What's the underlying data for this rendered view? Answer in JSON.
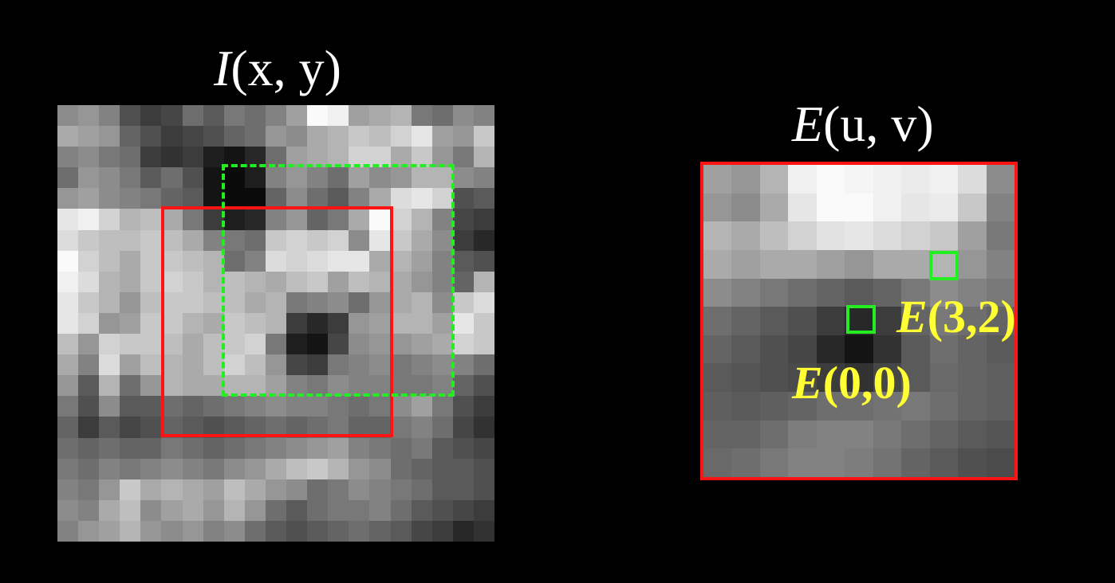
{
  "titles": {
    "image": {
      "name": "I",
      "args": "(x, y)"
    },
    "error": {
      "name": "E",
      "args": "(u, v)"
    }
  },
  "labels": {
    "e00": {
      "name": "E",
      "args": "(0,0)"
    },
    "e32": {
      "name": "E",
      "args": "(3,2)"
    }
  },
  "colors": {
    "background": "#000000",
    "window": "#ff1414",
    "shifted_window": "#22ee22",
    "marker": "#22ee22",
    "label_text": "#ffff33",
    "title_text": "#ffffff"
  },
  "image_patch": {
    "rows": 21,
    "cols": 21,
    "pixels": [
      [
        140,
        150,
        130,
        80,
        60,
        70,
        110,
        90,
        120,
        110,
        130,
        160,
        250,
        240,
        160,
        170,
        180,
        120,
        110,
        140,
        130
      ],
      [
        170,
        160,
        150,
        100,
        80,
        60,
        70,
        80,
        100,
        110,
        150,
        140,
        170,
        180,
        200,
        190,
        210,
        230,
        160,
        150,
        200
      ],
      [
        130,
        140,
        120,
        110,
        60,
        50,
        60,
        30,
        20,
        40,
        110,
        160,
        170,
        180,
        210,
        210,
        170,
        200,
        150,
        120,
        180
      ],
      [
        110,
        150,
        140,
        120,
        90,
        110,
        80,
        20,
        10,
        30,
        130,
        150,
        130,
        110,
        160,
        140,
        150,
        180,
        180,
        140,
        130
      ],
      [
        150,
        160,
        140,
        130,
        120,
        100,
        90,
        20,
        10,
        10,
        100,
        140,
        110,
        90,
        130,
        170,
        220,
        230,
        210,
        80,
        90
      ],
      [
        230,
        240,
        210,
        180,
        190,
        170,
        120,
        60,
        30,
        40,
        130,
        150,
        100,
        120,
        170,
        250,
        210,
        180,
        130,
        70,
        60
      ],
      [
        220,
        200,
        190,
        190,
        200,
        190,
        170,
        130,
        120,
        110,
        200,
        210,
        200,
        210,
        140,
        230,
        200,
        170,
        140,
        60,
        40
      ],
      [
        250,
        210,
        190,
        170,
        200,
        200,
        190,
        180,
        110,
        130,
        220,
        210,
        220,
        230,
        230,
        170,
        180,
        160,
        130,
        90,
        80
      ],
      [
        240,
        220,
        180,
        170,
        200,
        210,
        200,
        180,
        190,
        180,
        170,
        190,
        200,
        160,
        190,
        180,
        170,
        150,
        130,
        100,
        180
      ],
      [
        230,
        200,
        180,
        150,
        190,
        200,
        200,
        190,
        190,
        170,
        180,
        120,
        130,
        140,
        110,
        150,
        170,
        180,
        140,
        200,
        220
      ],
      [
        230,
        210,
        150,
        160,
        200,
        200,
        180,
        170,
        200,
        190,
        180,
        60,
        40,
        60,
        150,
        160,
        180,
        180,
        160,
        230,
        200
      ],
      [
        190,
        150,
        210,
        200,
        200,
        190,
        170,
        190,
        200,
        210,
        120,
        30,
        20,
        70,
        140,
        150,
        150,
        160,
        170,
        210,
        200
      ],
      [
        170,
        130,
        220,
        160,
        190,
        180,
        170,
        190,
        210,
        190,
        150,
        70,
        60,
        120,
        130,
        140,
        120,
        130,
        140,
        130,
        110
      ],
      [
        150,
        90,
        180,
        110,
        150,
        180,
        170,
        170,
        180,
        180,
        160,
        130,
        120,
        140,
        130,
        130,
        120,
        120,
        130,
        100,
        80
      ],
      [
        120,
        80,
        140,
        90,
        90,
        110,
        100,
        110,
        120,
        130,
        140,
        130,
        130,
        120,
        110,
        120,
        140,
        160,
        120,
        80,
        60
      ],
      [
        100,
        60,
        90,
        70,
        80,
        100,
        90,
        80,
        90,
        100,
        110,
        100,
        110,
        120,
        100,
        100,
        120,
        130,
        110,
        70,
        50
      ],
      [
        110,
        100,
        110,
        100,
        100,
        120,
        110,
        100,
        110,
        120,
        130,
        140,
        150,
        160,
        130,
        120,
        110,
        120,
        90,
        80,
        70
      ],
      [
        120,
        110,
        130,
        120,
        130,
        140,
        130,
        120,
        140,
        150,
        170,
        190,
        200,
        180,
        150,
        140,
        110,
        100,
        90,
        90,
        80
      ],
      [
        130,
        120,
        150,
        200,
        170,
        180,
        170,
        160,
        190,
        170,
        150,
        140,
        110,
        120,
        140,
        130,
        120,
        110,
        90,
        90,
        80
      ],
      [
        140,
        130,
        170,
        190,
        140,
        160,
        170,
        150,
        180,
        150,
        110,
        90,
        110,
        120,
        120,
        130,
        110,
        90,
        80,
        70,
        60
      ],
      [
        130,
        150,
        160,
        180,
        150,
        140,
        150,
        130,
        140,
        110,
        90,
        80,
        90,
        100,
        110,
        100,
        90,
        70,
        60,
        40,
        50
      ]
    ]
  },
  "error_surface": {
    "rows": 11,
    "cols": 11,
    "pixels": [
      [
        160,
        150,
        180,
        240,
        250,
        245,
        240,
        235,
        240,
        220,
        140
      ],
      [
        150,
        140,
        170,
        230,
        250,
        250,
        240,
        230,
        235,
        200,
        130
      ],
      [
        180,
        170,
        190,
        210,
        225,
        230,
        220,
        210,
        200,
        160,
        120
      ],
      [
        170,
        160,
        170,
        170,
        160,
        150,
        170,
        170,
        180,
        150,
        130
      ],
      [
        140,
        130,
        120,
        110,
        100,
        90,
        100,
        120,
        140,
        130,
        120
      ],
      [
        110,
        100,
        90,
        80,
        60,
        40,
        60,
        100,
        120,
        110,
        100
      ],
      [
        100,
        90,
        80,
        70,
        40,
        20,
        50,
        90,
        110,
        100,
        90
      ],
      [
        90,
        85,
        80,
        75,
        60,
        50,
        70,
        90,
        105,
        100,
        95
      ],
      [
        95,
        90,
        95,
        100,
        110,
        110,
        115,
        120,
        110,
        100,
        95
      ],
      [
        100,
        100,
        110,
        125,
        130,
        130,
        120,
        110,
        100,
        90,
        85
      ],
      [
        105,
        110,
        120,
        130,
        130,
        125,
        115,
        100,
        90,
        80,
        75
      ]
    ]
  }
}
